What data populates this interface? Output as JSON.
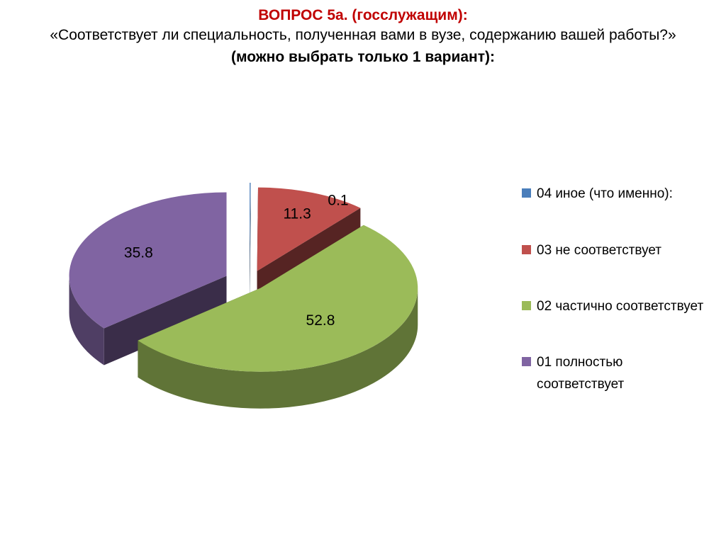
{
  "header": {
    "title": "ВОПРОС 5а.  (госслужащим):",
    "question": "«Соответствует ли специальность, полученная вами в вузе, содержанию вашей работы?»",
    "note": "(можно выбрать только 1 вариант):"
  },
  "chart_data": {
    "type": "pie",
    "title": "",
    "style": "3d-exploded",
    "legend_position": "right",
    "slices": [
      {
        "label": "04  иное (что именно):",
        "value": 0.1,
        "value_label": "0.1",
        "color": "#4a7ebb"
      },
      {
        "label": "03  не соответствует",
        "value": 11.3,
        "value_label": "11.3",
        "color": "#c0504d"
      },
      {
        "label": "02  частично соответствует",
        "value": 52.8,
        "value_label": "52.8",
        "color": "#9bbb59"
      },
      {
        "label": "01  полностью соответствует",
        "value": 35.8,
        "value_label": "35.8",
        "color": "#8064a2"
      }
    ]
  }
}
